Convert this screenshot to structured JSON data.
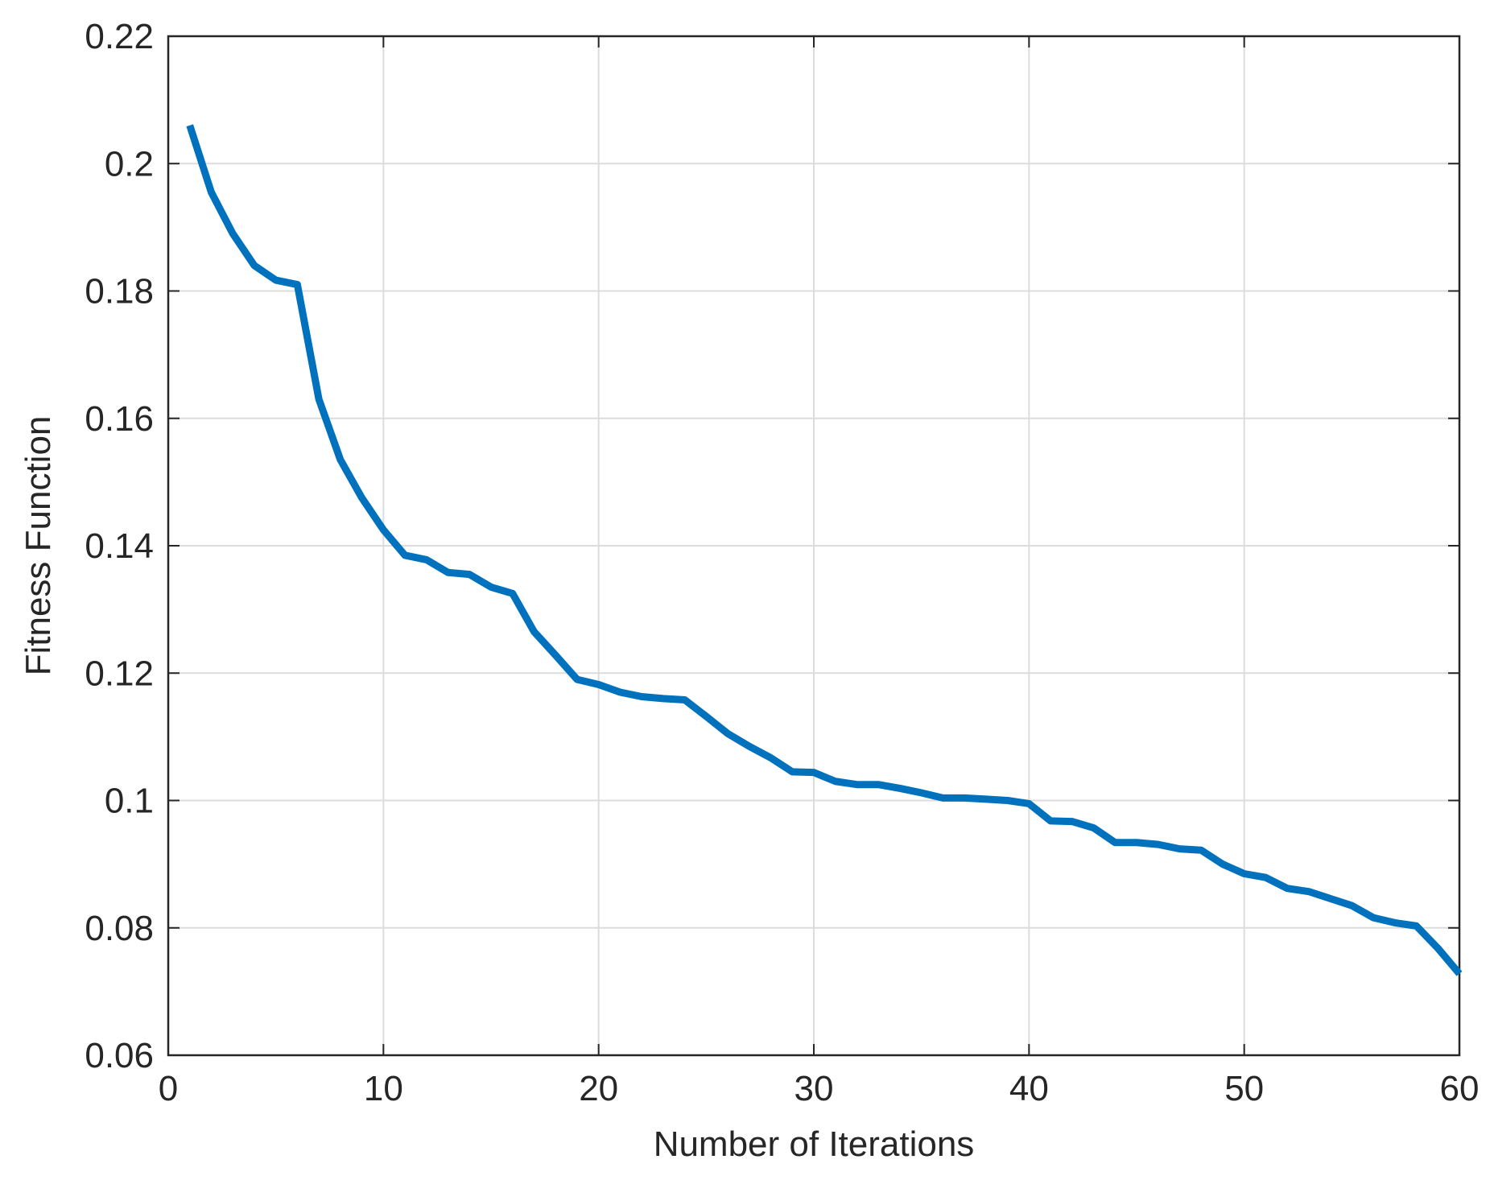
{
  "chart_data": {
    "type": "line",
    "x_label": "Number of Iterations",
    "y_label": "Fitness Function",
    "x": [
      1,
      2,
      3,
      4,
      5,
      6,
      7,
      8,
      9,
      10,
      11,
      12,
      13,
      14,
      15,
      16,
      17,
      18,
      19,
      20,
      21,
      22,
      23,
      24,
      25,
      26,
      27,
      28,
      29,
      30,
      31,
      32,
      33,
      34,
      35,
      36,
      37,
      38,
      39,
      40,
      41,
      42,
      43,
      44,
      45,
      46,
      47,
      48,
      49,
      50,
      51,
      52,
      53,
      54,
      55,
      56,
      57,
      58,
      59,
      60
    ],
    "series": [
      {
        "color": "#0072bd",
        "values": [
          0.206,
          0.1955,
          0.189,
          0.184,
          0.1817,
          0.181,
          0.163,
          0.1535,
          0.1475,
          0.1425,
          0.1385,
          0.1378,
          0.1358,
          0.1355,
          0.1335,
          0.1325,
          0.1265,
          0.1228,
          0.119,
          0.1182,
          0.117,
          0.1163,
          0.116,
          0.1158,
          0.1132,
          0.1105,
          0.1085,
          0.1067,
          0.1045,
          0.1044,
          0.103,
          0.1025,
          0.1025,
          0.1019,
          0.1012,
          0.1004,
          0.1004,
          0.1002,
          0.1,
          0.0995,
          0.0968,
          0.0967,
          0.0957,
          0.0934,
          0.0934,
          0.0931,
          0.0924,
          0.0922,
          0.09,
          0.0885,
          0.0879,
          0.0862,
          0.0857,
          0.0846,
          0.0835,
          0.0816,
          0.0808,
          0.0803,
          0.0768,
          0.0728
        ]
      }
    ],
    "xlim": [
      0,
      60
    ],
    "xticks": [
      0,
      10,
      20,
      30,
      40,
      50,
      60
    ],
    "ylim": [
      0.06,
      0.22
    ],
    "yticks": [
      0.06,
      0.08,
      0.1,
      0.12,
      0.14,
      0.16,
      0.18,
      0.2,
      0.22
    ],
    "grid": true
  }
}
